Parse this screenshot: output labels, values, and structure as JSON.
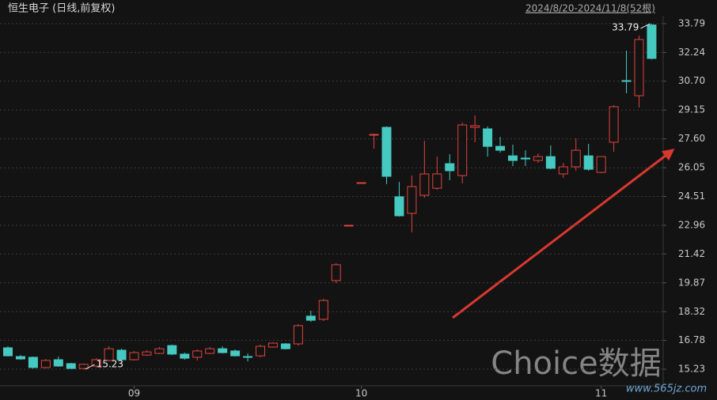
{
  "chart_data": {
    "type": "candlestick",
    "title": "恒生电子 (日线,前复权)",
    "subtitle": "2024/8/20-2024/11/8(52根)",
    "watermark": "Choice数据",
    "watermark_url": "www.565jz.com",
    "high_label": 33.79,
    "low_label": 15.23,
    "up_color": "#e2433d",
    "down_color": "#45c9c1",
    "grid": true,
    "ylim": [
      14.34,
      35.06
    ],
    "yticks": [
      15.23,
      16.78,
      18.32,
      19.87,
      21.42,
      22.96,
      24.51,
      26.05,
      {
        "value": 27.6,
        "label": "27.60"
      },
      29.15,
      {
        "value": 30.7,
        "label": "30.70"
      },
      32.24,
      33.79
    ],
    "categories": [
      null,
      null,
      null,
      null,
      null,
      null,
      null,
      null,
      null,
      null,
      "09",
      null,
      null,
      null,
      null,
      null,
      null,
      null,
      null,
      null,
      null,
      null,
      null,
      null,
      null,
      null,
      null,
      null,
      "10",
      null,
      null,
      null,
      null,
      null,
      null,
      null,
      null,
      null,
      null,
      null,
      null,
      null,
      null,
      null,
      null,
      null,
      null,
      "11",
      null,
      null,
      null,
      null
    ],
    "open": [
      16.38,
      15.91,
      15.87,
      15.32,
      15.74,
      15.53,
      15.27,
      15.4,
      15.7,
      16.25,
      15.74,
      15.99,
      16.08,
      16.5,
      16.04,
      15.87,
      16.08,
      16.33,
      16.21,
      15.91,
      15.95,
      16.42,
      16.59,
      16.59,
      18.08,
      17.91,
      19.99,
      22.96,
      25.25,
      27.8,
      28.22,
      24.49,
      23.6,
      24.57,
      24.95,
      26.27,
      25.63,
      28.22,
      28.14,
      27.2,
      26.69,
      26.57,
      26.44,
      26.65,
      25.72,
      26.1,
      26.69,
      25.8,
      27.42,
      30.73,
      29.92,
      33.72
    ],
    "high": [
      16.46,
      15.99,
      15.91,
      15.78,
      15.91,
      15.57,
      15.53,
      15.82,
      16.46,
      16.33,
      16.21,
      16.25,
      16.42,
      16.55,
      16.12,
      16.29,
      16.42,
      16.46,
      16.29,
      16.08,
      16.55,
      16.67,
      16.63,
      17.65,
      18.37,
      19.01,
      20.92,
      22.96,
      25.25,
      27.88,
      28.27,
      25.29,
      25.63,
      27.5,
      26.65,
      26.78,
      28.48,
      28.86,
      28.27,
      27.71,
      27.29,
      26.99,
      26.82,
      27.25,
      26.31,
      27.63,
      27.33,
      26.67,
      29.41,
      32.34,
      33.15,
      33.79
    ],
    "low": [
      15.91,
      15.74,
      15.27,
      15.27,
      15.36,
      15.25,
      15.23,
      15.32,
      15.65,
      15.7,
      15.7,
      15.95,
      16.04,
      15.99,
      15.74,
      15.7,
      16.04,
      16.08,
      15.91,
      15.65,
      15.87,
      16.38,
      16.29,
      16.5,
      17.78,
      17.82,
      19.86,
      22.96,
      25.25,
      27.08,
      25.17,
      23.43,
      22.58,
      24.44,
      24.87,
      25.38,
      25.21,
      27.42,
      26.65,
      26.86,
      26.14,
      26.14,
      26.31,
      25.97,
      25.51,
      25.89,
      25.89,
      25.76,
      26.91,
      30.05,
      29.28,
      31.87
    ],
    "close": [
      15.95,
      15.78,
      15.32,
      15.7,
      15.4,
      15.27,
      15.49,
      15.74,
      16.33,
      15.74,
      16.12,
      16.16,
      16.33,
      16.04,
      15.82,
      16.21,
      16.33,
      16.12,
      15.95,
      15.87,
      16.46,
      16.63,
      16.33,
      17.57,
      17.86,
      18.92,
      20.84,
      22.96,
      25.25,
      27.84,
      25.59,
      23.47,
      25.04,
      25.72,
      25.72,
      25.89,
      28.35,
      28.31,
      27.2,
      26.99,
      26.44,
      26.52,
      26.65,
      26.02,
      26.1,
      26.99,
      25.97,
      26.65,
      29.33,
      30.69,
      32.94,
      31.92
    ]
  }
}
